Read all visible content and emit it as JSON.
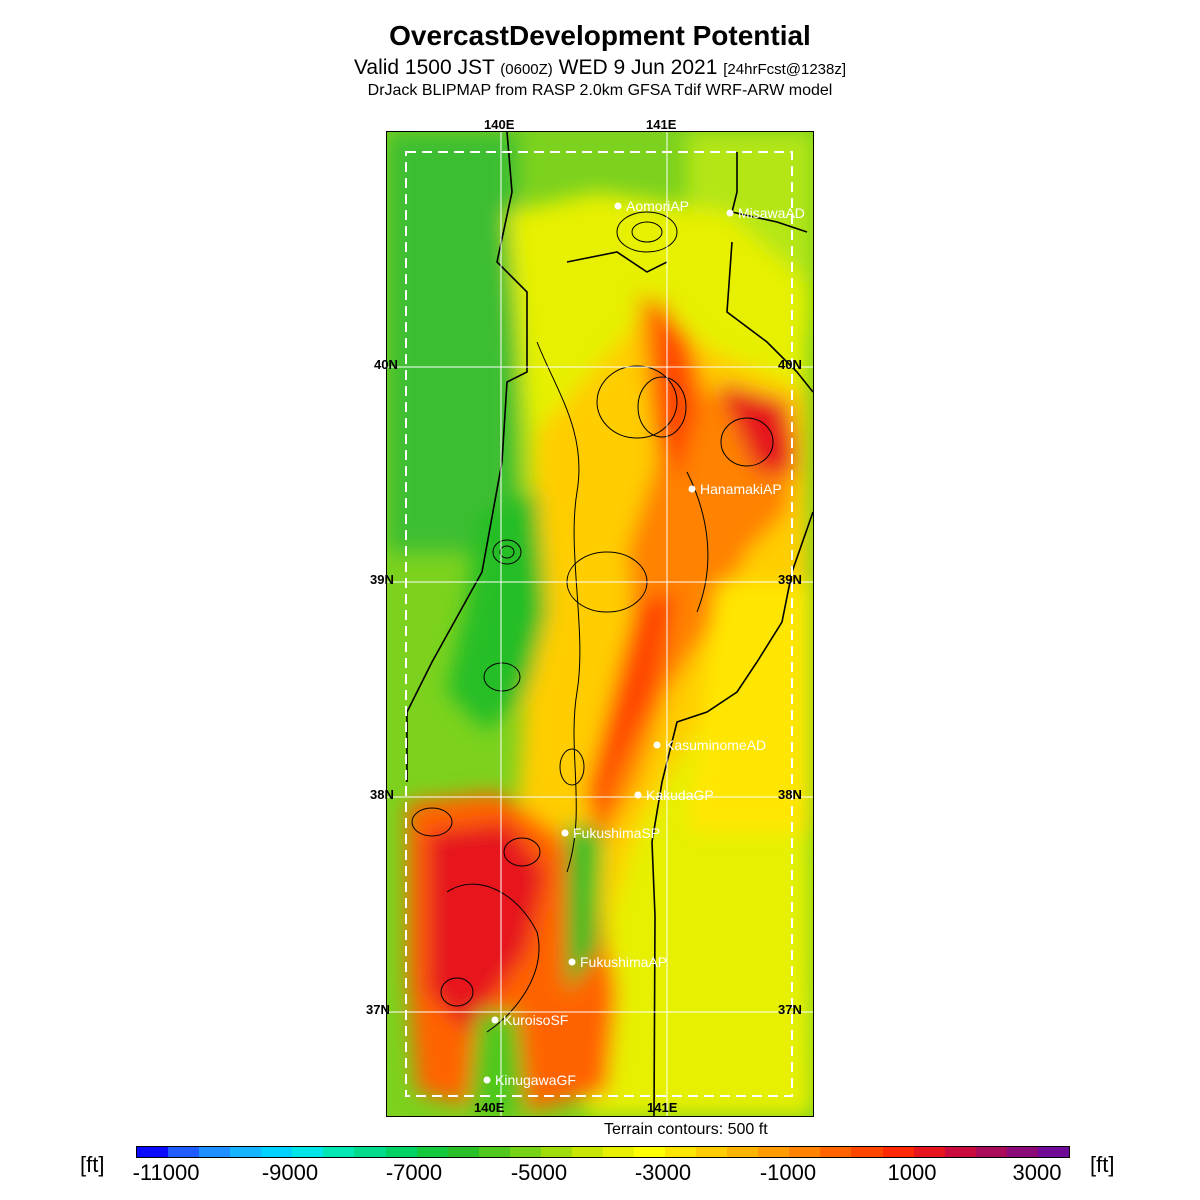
{
  "header": {
    "title": "OvercastDevelopment Potential",
    "valid_prefix": "Valid 1500 JST",
    "valid_z": "(0600Z)",
    "valid_date": "WED 9 Jun 2021",
    "fcst": "[24hrFcst@1238z]",
    "model": "DrJack BLIPMAP from RASP 2.0km GFSA Tdif WRF-ARW model"
  },
  "map": {
    "lon_labels_top": [
      "140E",
      "141E"
    ],
    "lon_labels_bottom": [
      "140E",
      "141E"
    ],
    "lat_labels_left": [
      "40N",
      "39N",
      "38N",
      "37N"
    ],
    "lat_labels_right": [
      "40N",
      "39N",
      "38N",
      "37N"
    ],
    "sites": [
      {
        "name": "AomoriAP"
      },
      {
        "name": "MisawaAD"
      },
      {
        "name": "HanamakiAP"
      },
      {
        "name": "KasuminomeAD"
      },
      {
        "name": "KakudaGP"
      },
      {
        "name": "FukushimaSP"
      },
      {
        "name": "FukushimaAP"
      },
      {
        "name": "KuroisoSF"
      },
      {
        "name": "KinugawaGF"
      }
    ],
    "terrain_note": "Terrain contours: 500 ft"
  },
  "colorbar": {
    "unit_left": "[ft]",
    "unit_right": "[ft]",
    "labels": [
      "-11000",
      "-9000",
      "-7000",
      "-5000",
      "-3000",
      "-1000",
      "1000",
      "3000"
    ],
    "colors": [
      "#0a0aff",
      "#1e5cff",
      "#1e90ff",
      "#14b4ff",
      "#00d2ff",
      "#00e6e6",
      "#00e6b4",
      "#00dc8c",
      "#00d264",
      "#14c83c",
      "#28be28",
      "#50c81e",
      "#78d214",
      "#a0dc0a",
      "#c8e600",
      "#e6f000",
      "#ffff00",
      "#ffe600",
      "#ffcd00",
      "#ffb400",
      "#ff9b00",
      "#ff8200",
      "#ff6400",
      "#ff4600",
      "#ff2800",
      "#e6141e",
      "#c80a3c",
      "#aa0a5a",
      "#8c0a78",
      "#6e0a96"
    ]
  }
}
